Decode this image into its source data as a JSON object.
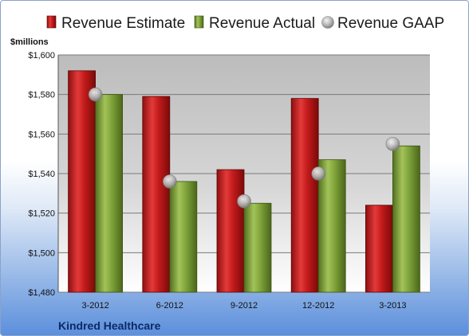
{
  "chart_data": {
    "type": "bar",
    "title": "",
    "ylabel": "$millions",
    "footer": "Kindred Healthcare",
    "categories": [
      "3-2012",
      "6-2012",
      "9-2012",
      "12-2012",
      "3-2013"
    ],
    "ylim": [
      1480,
      1600
    ],
    "yticks": [
      1480,
      1500,
      1520,
      1540,
      1560,
      1580,
      1600
    ],
    "ytick_labels": [
      "$1,480",
      "$1,500",
      "$1,520",
      "$1,540",
      "$1,560",
      "$1,580",
      "$1,600"
    ],
    "grid": true,
    "legend_position": "top",
    "series": [
      {
        "name": "Revenue Estimate",
        "kind": "bar",
        "color": "#d42020",
        "values": [
          1592,
          1579,
          1542,
          1578,
          1524
        ]
      },
      {
        "name": "Revenue Actual",
        "kind": "bar",
        "color": "#7fa33a",
        "values": [
          1580,
          1536,
          1525,
          1547,
          1554
        ]
      },
      {
        "name": "Revenue GAAP",
        "kind": "marker",
        "color": "#a8a8a8",
        "values": [
          1580,
          1536,
          1526,
          1540,
          1555
        ]
      }
    ]
  }
}
